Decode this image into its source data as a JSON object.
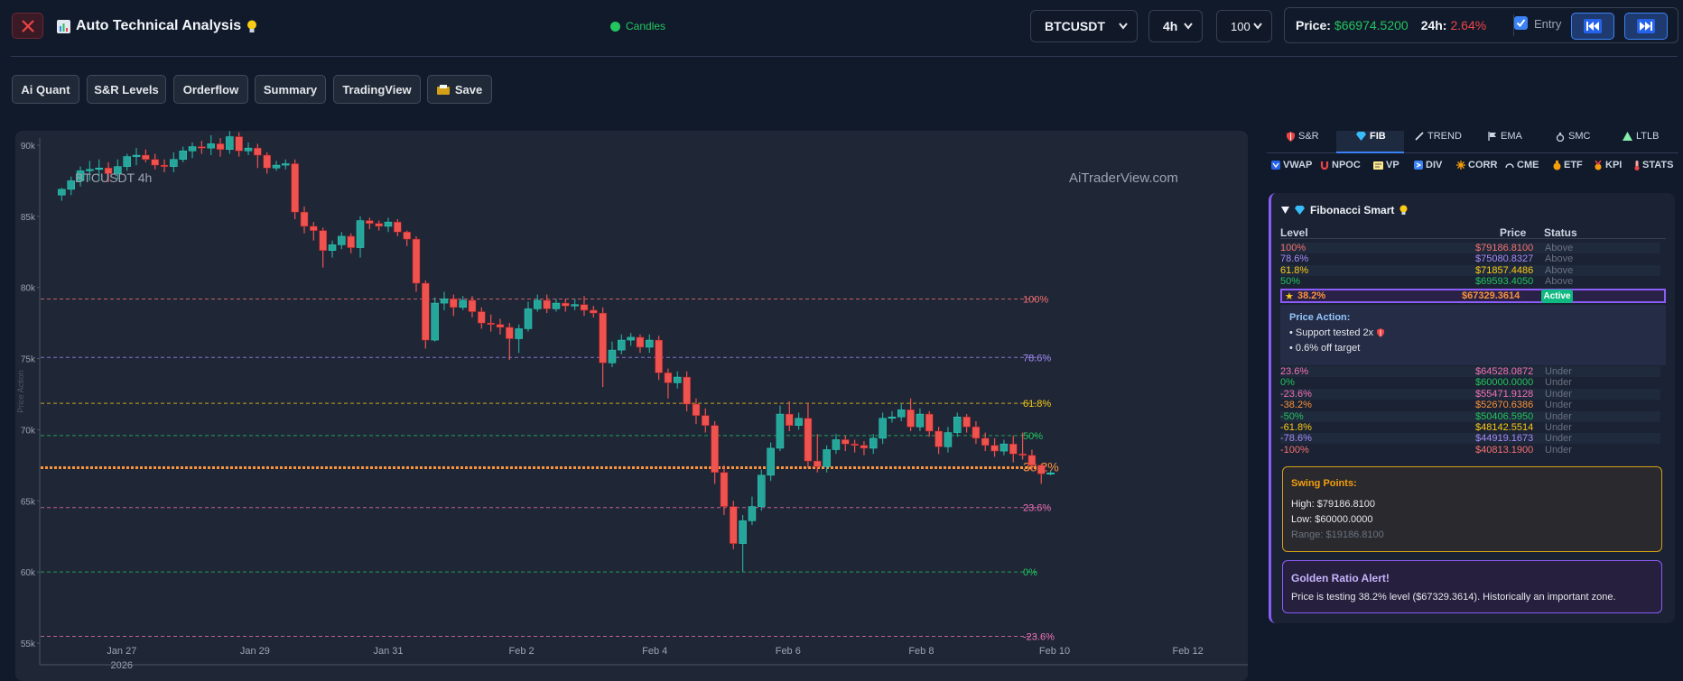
{
  "app": {
    "title": "Auto Technical Analysis",
    "title_icon": "bar-chart-icon",
    "title_suffix_icon": "lightbulb-icon",
    "status_text": "Candles",
    "status_color": "#22c55e"
  },
  "controls": {
    "symbol": "BTCUSDT",
    "timeframe": "4h",
    "count": "100"
  },
  "ticker": {
    "price_label": "Price:",
    "price": "$66974.5200",
    "change_label": "24h:",
    "change": "2.64%",
    "entry_label": "Entry",
    "entry_checked": true
  },
  "toolbar": [
    "Ai Quant",
    "S&R Levels",
    "Orderflow",
    "Summary",
    "TradingView",
    "Save"
  ],
  "chart": {
    "symbol_label": "BTCUSDT 4h",
    "watermark": "AiTraderView.com",
    "y_axis_title": "Price Action",
    "y_ticks": [
      "90k",
      "85k",
      "80k",
      "75k",
      "70k",
      "65k",
      "60k",
      "55k"
    ],
    "x_ticks": [
      "Jan 27",
      "Jan 29",
      "Jan 31",
      "Feb 2",
      "Feb 4",
      "Feb 6",
      "Feb 8",
      "Feb 10",
      "Feb 12"
    ],
    "x_year": "2026",
    "fib_lines": [
      {
        "label": "100%",
        "color": "#f87171"
      },
      {
        "label": "78.6%",
        "color": "#a78bfa"
      },
      {
        "label": "61.8%",
        "color": "#facc15"
      },
      {
        "label": "50%",
        "color": "#22c55e"
      },
      {
        "label": "38.2%",
        "color": "#fb923c"
      },
      {
        "label": "23.6%",
        "color": "#f472b6"
      },
      {
        "label": "0%",
        "color": "#22c55e"
      },
      {
        "label": "-23.6%",
        "color": "#f472b6"
      }
    ]
  },
  "chart_data": {
    "type": "candlestick",
    "title": "BTCUSDT 4h",
    "ylabel": "Price Action",
    "ylim": [
      55000,
      92000
    ],
    "x_range": [
      "2026-01-26",
      "2026-02-12"
    ],
    "up_color": "#26a69a",
    "down_color": "#ef5350",
    "candles": [
      [
        0.1,
        86500,
        86900,
        86100,
        87000
      ],
      [
        0.24,
        86900,
        87500,
        86500,
        87800
      ],
      [
        0.38,
        87500,
        88200,
        87100,
        88500
      ],
      [
        0.52,
        88200,
        88300,
        87500,
        88900
      ],
      [
        0.66,
        88300,
        88400,
        87500,
        89000
      ],
      [
        0.8,
        88400,
        88000,
        87400,
        88800
      ],
      [
        0.94,
        88000,
        88500,
        87600,
        89000
      ],
      [
        1.08,
        88500,
        89200,
        88200,
        89400
      ],
      [
        1.22,
        89200,
        89300,
        88600,
        89800
      ],
      [
        1.36,
        89300,
        89000,
        88800,
        89700
      ],
      [
        1.5,
        89000,
        88600,
        88300,
        89400
      ],
      [
        1.64,
        88600,
        88500,
        88100,
        89000
      ],
      [
        1.78,
        88500,
        89000,
        88100,
        89500
      ],
      [
        1.92,
        89000,
        89600,
        88800,
        89900
      ],
      [
        2.06,
        89600,
        89900,
        89100,
        90200
      ],
      [
        2.2,
        89900,
        89800,
        89400,
        90300
      ],
      [
        2.34,
        89800,
        90100,
        89300,
        90700
      ],
      [
        2.48,
        90100,
        89700,
        89200,
        90500
      ],
      [
        2.62,
        89700,
        90600,
        89400,
        91000
      ],
      [
        2.76,
        90600,
        89600,
        89200,
        90900
      ],
      [
        2.9,
        89600,
        89800,
        89300,
        90200
      ],
      [
        3.04,
        89800,
        89300,
        88400,
        90100
      ],
      [
        3.18,
        89300,
        88400,
        88000,
        89500
      ],
      [
        3.32,
        88400,
        88600,
        88200,
        88900
      ],
      [
        3.46,
        88600,
        88700,
        88300,
        89000
      ],
      [
        3.6,
        88700,
        85300,
        84800,
        89000
      ],
      [
        3.74,
        85300,
        84300,
        83800,
        85700
      ],
      [
        3.88,
        84300,
        84000,
        83300,
        84600
      ],
      [
        4.02,
        84000,
        82600,
        81400,
        84200
      ],
      [
        4.16,
        82600,
        83000,
        82100,
        83300
      ],
      [
        4.3,
        83000,
        83600,
        82700,
        83900
      ],
      [
        4.44,
        83600,
        82800,
        82400,
        83800
      ],
      [
        4.58,
        82800,
        84700,
        82100,
        85000
      ],
      [
        4.72,
        84700,
        84500,
        84100,
        84900
      ],
      [
        4.86,
        84500,
        84300,
        84000,
        84700
      ],
      [
        5.0,
        84300,
        84600,
        83900,
        84900
      ],
      [
        5.14,
        84600,
        83900,
        83600,
        84800
      ],
      [
        5.28,
        83900,
        83400,
        82900,
        84000
      ],
      [
        5.42,
        83400,
        80300,
        79700,
        83600
      ],
      [
        5.56,
        80300,
        76300,
        75700,
        80500
      ],
      [
        5.7,
        76300,
        78900,
        76200,
        79300
      ],
      [
        5.84,
        78900,
        79200,
        78400,
        79700
      ],
      [
        5.98,
        79200,
        78600,
        78000,
        79500
      ],
      [
        6.12,
        78600,
        79100,
        78400,
        79400
      ],
      [
        6.26,
        79100,
        78300,
        77900,
        79400
      ],
      [
        6.4,
        78300,
        77500,
        77100,
        78600
      ],
      [
        6.54,
        77500,
        77400,
        76900,
        78100
      ],
      [
        6.68,
        77400,
        77200,
        76700,
        77800
      ],
      [
        6.82,
        77200,
        76400,
        74900,
        77500
      ],
      [
        6.96,
        76400,
        77100,
        75400,
        77400
      ],
      [
        7.1,
        77100,
        78500,
        76900,
        79000
      ],
      [
        7.24,
        78500,
        79100,
        78300,
        79500
      ],
      [
        7.38,
        79100,
        78500,
        78200,
        79500
      ],
      [
        7.52,
        78500,
        78900,
        78300,
        79200
      ],
      [
        7.66,
        78900,
        78700,
        78300,
        79200
      ],
      [
        7.8,
        78700,
        78800,
        78400,
        79200
      ],
      [
        7.94,
        78800,
        78400,
        78000,
        79400
      ],
      [
        8.08,
        78400,
        78200,
        77900,
        78700
      ],
      [
        8.22,
        78200,
        74700,
        73000,
        78600
      ],
      [
        8.36,
        74700,
        75600,
        74400,
        76200
      ],
      [
        8.5,
        75600,
        76300,
        75300,
        76700
      ],
      [
        8.64,
        76300,
        76500,
        75900,
        76800
      ],
      [
        8.78,
        76500,
        75800,
        75400,
        76700
      ],
      [
        8.92,
        75800,
        76300,
        75400,
        76700
      ],
      [
        9.06,
        76300,
        74000,
        73500,
        76600
      ],
      [
        9.2,
        74000,
        73300,
        72200,
        74300
      ],
      [
        9.34,
        73300,
        73700,
        72900,
        74100
      ],
      [
        9.48,
        73700,
        71800,
        71300,
        74100
      ],
      [
        9.62,
        71800,
        71000,
        70400,
        72200
      ],
      [
        9.76,
        71000,
        70300,
        69800,
        71500
      ],
      [
        9.9,
        70300,
        67000,
        66200,
        70600
      ],
      [
        10.04,
        67000,
        64600,
        64000,
        67500
      ],
      [
        10.18,
        64600,
        62000,
        61600,
        65000
      ],
      [
        10.32,
        62000,
        63600,
        60000,
        64000
      ],
      [
        10.46,
        63600,
        64600,
        63300,
        65300
      ],
      [
        10.6,
        64600,
        66800,
        64300,
        67200
      ],
      [
        10.74,
        66800,
        68700,
        66400,
        69100
      ],
      [
        10.88,
        68700,
        71100,
        68500,
        71700
      ],
      [
        11.02,
        71100,
        70300,
        69900,
        72000
      ],
      [
        11.16,
        70300,
        70800,
        70000,
        71200
      ],
      [
        11.3,
        70800,
        67800,
        67300,
        71900
      ],
      [
        11.44,
        67800,
        67400,
        67000,
        69700
      ],
      [
        11.58,
        67400,
        68600,
        67000,
        68900
      ],
      [
        11.72,
        68600,
        69300,
        68300,
        69700
      ],
      [
        11.86,
        69300,
        69000,
        68500,
        69600
      ],
      [
        12.0,
        69000,
        68900,
        68400,
        69300
      ],
      [
        12.14,
        68900,
        68700,
        68200,
        69200
      ],
      [
        12.28,
        68700,
        69400,
        68300,
        69700
      ],
      [
        12.42,
        69400,
        70800,
        69000,
        71200
      ],
      [
        12.56,
        70800,
        70900,
        70500,
        71300
      ],
      [
        12.7,
        70900,
        71400,
        70600,
        71800
      ],
      [
        12.84,
        71400,
        70200,
        69900,
        72200
      ],
      [
        12.98,
        70200,
        71100,
        69900,
        71500
      ],
      [
        13.12,
        71100,
        69900,
        69500,
        71300
      ],
      [
        13.26,
        69900,
        68800,
        68300,
        70200
      ],
      [
        13.4,
        68800,
        69800,
        68400,
        70200
      ],
      [
        13.54,
        69800,
        70900,
        69500,
        71200
      ],
      [
        13.68,
        70900,
        70200,
        69800,
        71100
      ],
      [
        13.82,
        70200,
        69400,
        69000,
        70600
      ],
      [
        13.96,
        69400,
        68900,
        68500,
        69800
      ],
      [
        14.1,
        68900,
        68500,
        68100,
        69400
      ],
      [
        14.24,
        68500,
        69000,
        68200,
        69300
      ],
      [
        14.38,
        69000,
        68300,
        67700,
        69600
      ],
      [
        14.52,
        68300,
        68200,
        67900,
        69800
      ],
      [
        14.66,
        68200,
        67500,
        67100,
        68600
      ],
      [
        14.8,
        67500,
        66900,
        66200,
        67600
      ],
      [
        14.94,
        66900,
        66970,
        66800,
        67100
      ]
    ],
    "fib_levels": [
      {
        "label": "100%",
        "price": 79186.81
      },
      {
        "label": "78.6%",
        "price": 75080.8327
      },
      {
        "label": "61.8%",
        "price": 71857.4486
      },
      {
        "label": "50%",
        "price": 69593.405
      },
      {
        "label": "38.2%",
        "price": 67329.3614
      },
      {
        "label": "23.6%",
        "price": 64528.0872
      },
      {
        "label": "0%",
        "price": 60000.0
      },
      {
        "label": "-23.6%",
        "price": 55471.9128
      }
    ]
  },
  "tabs": [
    {
      "icon": "shield-icon",
      "label": "S&R"
    },
    {
      "icon": "gem-icon",
      "label": "FIB",
      "active": true
    },
    {
      "icon": "trend-pen-icon",
      "label": "TREND"
    },
    {
      "icon": "flag-icon",
      "label": "EMA"
    },
    {
      "icon": "bag-icon",
      "label": "SMC"
    },
    {
      "icon": "triangle-icon",
      "label": "LTLB"
    }
  ],
  "indicators": [
    {
      "icon": "vwap-icon",
      "label": "VWAP"
    },
    {
      "icon": "magnet-icon",
      "label": "NPOC"
    },
    {
      "icon": "vp-icon",
      "label": "VP"
    },
    {
      "icon": "div-icon",
      "label": "DIV"
    },
    {
      "icon": "corr-icon",
      "label": "CORR"
    },
    {
      "icon": "cme-icon",
      "label": "CME"
    },
    {
      "icon": "etf-icon",
      "label": "ETF"
    },
    {
      "icon": "kpi-icon",
      "label": "KPI"
    },
    {
      "icon": "stats-icon",
      "label": "STATS"
    }
  ],
  "fib_panel": {
    "title": "Fibonacci Smart",
    "headers": {
      "level": "Level",
      "price": "Price",
      "status": "Status"
    },
    "rows_upper": [
      {
        "level": "100%",
        "price": "$79186.8100",
        "status": "Above",
        "color": "#f87171"
      },
      {
        "level": "78.6%",
        "price": "$75080.8327",
        "status": "Above",
        "color": "#a78bfa"
      },
      {
        "level": "61.8%",
        "price": "$71857.4486",
        "status": "Above",
        "color": "#facc15"
      },
      {
        "level": "50%",
        "price": "$69593.4050",
        "status": "Above",
        "color": "#22c55e"
      }
    ],
    "active": {
      "star": "★",
      "level": "38.2%",
      "price": "$67329.3614",
      "badge": "Active",
      "color": "#fb923c"
    },
    "price_action": {
      "title": "Price Action:",
      "items": [
        "• Support tested 2x",
        "• 0.6% off target"
      ]
    },
    "rows_lower": [
      {
        "level": "23.6%",
        "price": "$64528.0872",
        "status": "Under",
        "color": "#f472b6"
      },
      {
        "level": "0%",
        "price": "$60000.0000",
        "status": "Under",
        "color": "#22c55e"
      },
      {
        "level": "-23.6%",
        "price": "$55471.9128",
        "status": "Under",
        "color": "#f472b6"
      },
      {
        "level": "-38.2%",
        "price": "$52670.6386",
        "status": "Under",
        "color": "#fb923c"
      },
      {
        "level": "-50%",
        "price": "$50406.5950",
        "status": "Under",
        "color": "#22c55e"
      },
      {
        "level": "-61.8%",
        "price": "$48142.5514",
        "status": "Under",
        "color": "#facc15"
      },
      {
        "level": "-78.6%",
        "price": "$44919.1673",
        "status": "Under",
        "color": "#a78bfa"
      },
      {
        "level": "-100%",
        "price": "$40813.1900",
        "status": "Under",
        "color": "#f87171"
      }
    ],
    "swing": {
      "title": "Swing Points:",
      "high": "High: $79186.8100",
      "low": "Low: $60000.0000",
      "range": "Range: $19186.8100"
    },
    "alert": {
      "title": "Golden Ratio Alert!",
      "text": "Price is testing 38.2% level ($67329.3614). Historically an important zone."
    }
  }
}
